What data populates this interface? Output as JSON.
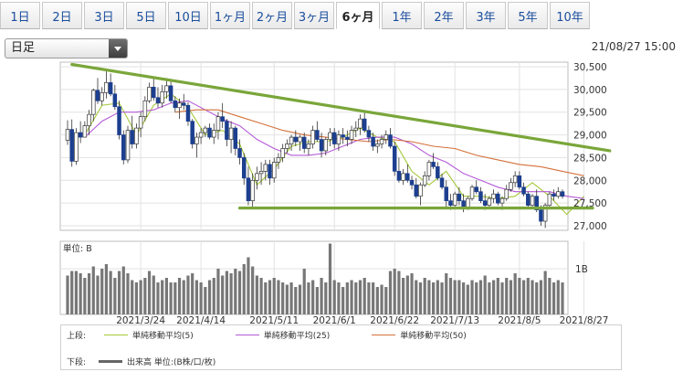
{
  "tabs": [
    {
      "label": "1日",
      "active": false
    },
    {
      "label": "2日",
      "active": false
    },
    {
      "label": "3日",
      "active": false
    },
    {
      "label": "5日",
      "active": false
    },
    {
      "label": "10日",
      "active": false
    },
    {
      "label": "1ヶ月",
      "active": false
    },
    {
      "label": "2ヶ月",
      "active": false
    },
    {
      "label": "3ヶ月",
      "active": false
    },
    {
      "label": "6ヶ月",
      "active": true
    },
    {
      "label": "1年",
      "active": false
    },
    {
      "label": "2年",
      "active": false
    },
    {
      "label": "3年",
      "active": false
    },
    {
      "label": "5年",
      "active": false
    },
    {
      "label": "10年",
      "active": false
    }
  ],
  "period_select": {
    "value": "日足"
  },
  "timestamp": "21/08/27 15:00",
  "chart_data": {
    "type": "candlestick",
    "title": "",
    "price_ylim": [
      26900,
      30600
    ],
    "price_ticks": [
      "30,500",
      "30,000",
      "29,500",
      "29,000",
      "28,500",
      "28,000",
      "27,500",
      "27,000"
    ],
    "price_tick_values": [
      30500,
      30000,
      29500,
      29000,
      28500,
      28000,
      27500,
      27000
    ],
    "x_tick_labels": [
      "2021/3/24",
      "2021/4/14",
      "2021/5/11",
      "2021/6/1",
      "2021/6/22",
      "2021/7/13",
      "2021/8/5",
      "2021/8/27"
    ],
    "x_tick_index": [
      17,
      31,
      48,
      62,
      76,
      90,
      105,
      120
    ],
    "volume_unit_label": "単位: B",
    "volume_tick_label": "1B",
    "volume_tick_value": 1.0,
    "volume_max": 1.6,
    "colors": {
      "up": "#ffffff",
      "down": "#1c3f8f",
      "wick": "#333333",
      "ma5": "#a5c93a",
      "ma25": "#b45ad6",
      "ma50": "#d4703a",
      "trend": "#7aa63a",
      "volume": "#777777"
    },
    "trendlines": [
      {
        "from": [
          1,
          30550
        ],
        "to": [
          126,
          28650
        ]
      },
      {
        "from": [
          40,
          27390
        ],
        "to": [
          122,
          27390
        ]
      }
    ],
    "candles": [
      [
        28880,
        29320,
        28780,
        29120,
        0.85
      ],
      [
        29120,
        29340,
        28300,
        28420,
        0.95
      ],
      [
        28420,
        29150,
        28340,
        29050,
        0.95
      ],
      [
        29050,
        29300,
        28820,
        28950,
        0.9
      ],
      [
        28950,
        29300,
        28950,
        29200,
        0.8
      ],
      [
        29200,
        29550,
        29000,
        29450,
        0.9
      ],
      [
        29450,
        30020,
        29300,
        29980,
        1.05
      ],
      [
        29980,
        30250,
        29680,
        29750,
        0.85
      ],
      [
        29750,
        30050,
        29650,
        29930,
        1.0
      ],
      [
        29930,
        30400,
        29800,
        30150,
        1.1
      ],
      [
        30150,
        30350,
        29850,
        29900,
        0.95
      ],
      [
        29900,
        30100,
        29550,
        29620,
        0.8
      ],
      [
        29620,
        29750,
        28900,
        29000,
        0.95
      ],
      [
        29000,
        29100,
        28350,
        28450,
        1.05
      ],
      [
        28450,
        29200,
        28380,
        29100,
        0.9
      ],
      [
        29100,
        29420,
        28700,
        28800,
        0.75
      ],
      [
        28800,
        29250,
        28700,
        29150,
        0.7
      ],
      [
        29150,
        29500,
        28950,
        29400,
        0.75
      ],
      [
        29400,
        29850,
        29300,
        29750,
        0.8
      ],
      [
        29750,
        30150,
        29700,
        30050,
        0.95
      ],
      [
        30050,
        30250,
        29750,
        29820,
        0.85
      ],
      [
        29820,
        30050,
        29600,
        29700,
        0.7
      ],
      [
        29700,
        30100,
        29600,
        29950,
        0.75
      ],
      [
        29950,
        30250,
        29800,
        30080,
        0.8
      ],
      [
        30080,
        30200,
        29700,
        29750,
        0.7
      ],
      [
        29750,
        29850,
        29500,
        29600,
        0.7
      ],
      [
        29600,
        29800,
        29350,
        29700,
        0.8
      ],
      [
        29700,
        29900,
        29550,
        29650,
        0.75
      ],
      [
        29650,
        29720,
        29200,
        29300,
        0.85
      ],
      [
        29300,
        29350,
        28700,
        28800,
        0.9
      ],
      [
        28800,
        29050,
        28500,
        28950,
        0.75
      ],
      [
        28950,
        29150,
        28800,
        29050,
        0.7
      ],
      [
        29050,
        29200,
        28950,
        29150,
        0.6
      ],
      [
        29150,
        29250,
        28900,
        28950,
        0.75
      ],
      [
        28950,
        29250,
        28800,
        29100,
        0.8
      ],
      [
        29100,
        29500,
        28900,
        29400,
        1.0
      ],
      [
        29400,
        29700,
        29150,
        29300,
        0.85
      ],
      [
        29300,
        29350,
        28750,
        28900,
        0.95
      ],
      [
        28900,
        29300,
        28600,
        29150,
        0.9
      ],
      [
        29150,
        29200,
        28550,
        28700,
        1.0
      ],
      [
        28700,
        28900,
        28350,
        28500,
        0.95
      ],
      [
        28500,
        28600,
        27900,
        28050,
        1.1
      ],
      [
        28050,
        28300,
        27450,
        27550,
        1.25
      ],
      [
        27550,
        28150,
        27400,
        28000,
        1.05
      ],
      [
        28000,
        28300,
        27800,
        28150,
        0.85
      ],
      [
        28150,
        28400,
        27900,
        28200,
        0.8
      ],
      [
        28200,
        28450,
        28000,
        28350,
        0.7
      ],
      [
        28350,
        28450,
        27900,
        28050,
        0.75
      ],
      [
        28050,
        28500,
        27950,
        28400,
        0.8
      ],
      [
        28400,
        28600,
        28250,
        28500,
        0.75
      ],
      [
        28500,
        28800,
        28400,
        28700,
        0.7
      ],
      [
        28700,
        28900,
        28600,
        28800,
        0.65
      ],
      [
        28800,
        29000,
        28650,
        28950,
        0.7
      ],
      [
        28950,
        29100,
        28750,
        28850,
        0.6
      ],
      [
        28850,
        29000,
        28650,
        28950,
        0.65
      ],
      [
        28950,
        29050,
        28600,
        28700,
        1.0
      ],
      [
        28700,
        28900,
        28550,
        28800,
        0.7
      ],
      [
        28800,
        29200,
        28700,
        29100,
        0.75
      ],
      [
        29100,
        29300,
        28850,
        28900,
        0.6
      ],
      [
        28900,
        29050,
        28500,
        28650,
        0.8
      ],
      [
        28650,
        28950,
        28550,
        28900,
        0.7
      ],
      [
        28900,
        29150,
        28750,
        29050,
        1.55
      ],
      [
        29050,
        29150,
        28700,
        28800,
        0.75
      ],
      [
        28800,
        29100,
        28650,
        29000,
        0.7
      ],
      [
        29000,
        29150,
        28800,
        28950,
        0.6
      ],
      [
        28950,
        29100,
        28750,
        28900,
        0.7
      ],
      [
        28900,
        29200,
        28800,
        29100,
        0.75
      ],
      [
        29100,
        29300,
        28950,
        29150,
        0.7
      ],
      [
        29150,
        29450,
        29000,
        29350,
        0.75
      ],
      [
        29350,
        29500,
        29050,
        29100,
        0.8
      ],
      [
        29100,
        29200,
        28850,
        28950,
        0.7
      ],
      [
        28950,
        29050,
        28650,
        28750,
        0.7
      ],
      [
        28750,
        28900,
        28600,
        28800,
        0.6
      ],
      [
        28800,
        29000,
        28700,
        28900,
        0.65
      ],
      [
        28900,
        29100,
        28800,
        29000,
        0.6
      ],
      [
        29000,
        29150,
        28700,
        28750,
        0.95
      ],
      [
        28750,
        28850,
        28100,
        28200,
        1.0
      ],
      [
        28200,
        28500,
        27950,
        28000,
        0.95
      ],
      [
        28000,
        28250,
        27900,
        28150,
        0.8
      ],
      [
        28150,
        28350,
        27950,
        28000,
        0.85
      ],
      [
        28000,
        28100,
        27800,
        27900,
        0.9
      ],
      [
        27900,
        28050,
        27600,
        27650,
        0.75
      ],
      [
        27650,
        27950,
        27450,
        27900,
        0.7
      ],
      [
        27900,
        28200,
        27850,
        28100,
        0.8
      ],
      [
        28100,
        28450,
        28000,
        28400,
        0.75
      ],
      [
        28400,
        28600,
        28250,
        28300,
        0.7
      ],
      [
        28300,
        28400,
        28000,
        28050,
        0.75
      ],
      [
        28050,
        28150,
        27800,
        27850,
        0.7
      ],
      [
        27850,
        28000,
        27400,
        27550,
        0.9
      ],
      [
        27550,
        27700,
        27350,
        27450,
        0.8
      ],
      [
        27450,
        27750,
        27400,
        27700,
        0.75
      ],
      [
        27700,
        27850,
        27450,
        27550,
        0.75
      ],
      [
        27550,
        27700,
        27300,
        27400,
        0.7
      ],
      [
        27400,
        27650,
        27350,
        27600,
        0.65
      ],
      [
        27600,
        27900,
        27550,
        27850,
        0.75
      ],
      [
        27850,
        28000,
        27700,
        27750,
        0.7
      ],
      [
        27750,
        27850,
        27500,
        27550,
        0.75
      ],
      [
        27550,
        27700,
        27350,
        27450,
        0.85
      ],
      [
        27450,
        27650,
        27400,
        27600,
        0.7
      ],
      [
        27600,
        27800,
        27500,
        27700,
        0.75
      ],
      [
        27700,
        27750,
        27450,
        27500,
        0.8
      ],
      [
        27500,
        27650,
        27350,
        27600,
        0.7
      ],
      [
        27600,
        27900,
        27550,
        27800,
        0.8
      ],
      [
        27800,
        28050,
        27750,
        27950,
        0.75
      ],
      [
        27950,
        28200,
        27850,
        28100,
        0.9
      ],
      [
        28100,
        28200,
        27800,
        27850,
        0.8
      ],
      [
        27850,
        27950,
        27650,
        27700,
        0.75
      ],
      [
        27700,
        27750,
        27400,
        27450,
        0.8
      ],
      [
        27450,
        27700,
        27400,
        27650,
        0.75
      ],
      [
        27650,
        27800,
        27300,
        27350,
        0.7
      ],
      [
        27350,
        27450,
        27000,
        27100,
        0.75
      ],
      [
        27100,
        27500,
        26950,
        27450,
        0.95
      ],
      [
        27450,
        27750,
        27400,
        27700,
        0.8
      ],
      [
        27700,
        27800,
        27550,
        27650,
        0.7
      ],
      [
        27650,
        27850,
        27600,
        27750,
        0.75
      ],
      [
        27750,
        27800,
        27600,
        27650,
        0.7
      ]
    ],
    "series": [
      {
        "name": "単純移動平均(5)",
        "key": "ma5",
        "points": [
          [
            4,
            29000
          ],
          [
            8,
            29650
          ],
          [
            12,
            29700
          ],
          [
            16,
            29000
          ],
          [
            20,
            29650
          ],
          [
            24,
            29900
          ],
          [
            28,
            29600
          ],
          [
            32,
            29000
          ],
          [
            36,
            29100
          ],
          [
            40,
            28800
          ],
          [
            44,
            27900
          ],
          [
            48,
            28250
          ],
          [
            52,
            28750
          ],
          [
            56,
            28850
          ],
          [
            60,
            28850
          ],
          [
            64,
            28950
          ],
          [
            68,
            29150
          ],
          [
            72,
            28950
          ],
          [
            76,
            28850
          ],
          [
            80,
            28200
          ],
          [
            84,
            27900
          ],
          [
            88,
            28200
          ],
          [
            92,
            27650
          ],
          [
            96,
            27650
          ],
          [
            100,
            27600
          ],
          [
            104,
            27650
          ],
          [
            108,
            27950
          ],
          [
            112,
            27650
          ],
          [
            116,
            27250
          ],
          [
            120,
            27650
          ]
        ]
      },
      {
        "name": "単純移動平均(25)",
        "key": "ma25",
        "points": [
          [
            4,
            28950
          ],
          [
            8,
            29300
          ],
          [
            12,
            29500
          ],
          [
            16,
            29500
          ],
          [
            20,
            29550
          ],
          [
            24,
            29700
          ],
          [
            28,
            29750
          ],
          [
            32,
            29550
          ],
          [
            36,
            29350
          ],
          [
            40,
            29200
          ],
          [
            44,
            28900
          ],
          [
            48,
            28700
          ],
          [
            52,
            28550
          ],
          [
            56,
            28550
          ],
          [
            60,
            28600
          ],
          [
            64,
            28750
          ],
          [
            68,
            28900
          ],
          [
            72,
            28950
          ],
          [
            76,
            28950
          ],
          [
            80,
            28800
          ],
          [
            84,
            28550
          ],
          [
            88,
            28400
          ],
          [
            92,
            28150
          ],
          [
            96,
            28000
          ],
          [
            100,
            27850
          ],
          [
            104,
            27750
          ],
          [
            108,
            27750
          ],
          [
            112,
            27750
          ],
          [
            116,
            27650
          ],
          [
            120,
            27600
          ]
        ]
      },
      {
        "name": "単純移動平均(50)",
        "key": "ma50",
        "points": [
          [
            25,
            29500
          ],
          [
            30,
            29550
          ],
          [
            35,
            29550
          ],
          [
            40,
            29400
          ],
          [
            45,
            29250
          ],
          [
            50,
            29100
          ],
          [
            55,
            29000
          ],
          [
            60,
            28950
          ],
          [
            65,
            28900
          ],
          [
            70,
            28850
          ],
          [
            75,
            28900
          ],
          [
            80,
            28850
          ],
          [
            85,
            28750
          ],
          [
            90,
            28700
          ],
          [
            95,
            28550
          ],
          [
            100,
            28450
          ],
          [
            105,
            28350
          ],
          [
            110,
            28300
          ],
          [
            115,
            28200
          ],
          [
            120,
            28100
          ]
        ]
      }
    ]
  },
  "legend": {
    "upper_label": "上段:",
    "upper_items": [
      {
        "name": "単純移動平均(5)",
        "color": "#a5c93a"
      },
      {
        "name": "単純移動平均(25)",
        "color": "#b45ad6"
      },
      {
        "name": "単純移動平均(50)",
        "color": "#d4703a"
      }
    ],
    "lower_label": "下段:",
    "lower_item": "出来高 単位:(B株/口/枚)"
  }
}
